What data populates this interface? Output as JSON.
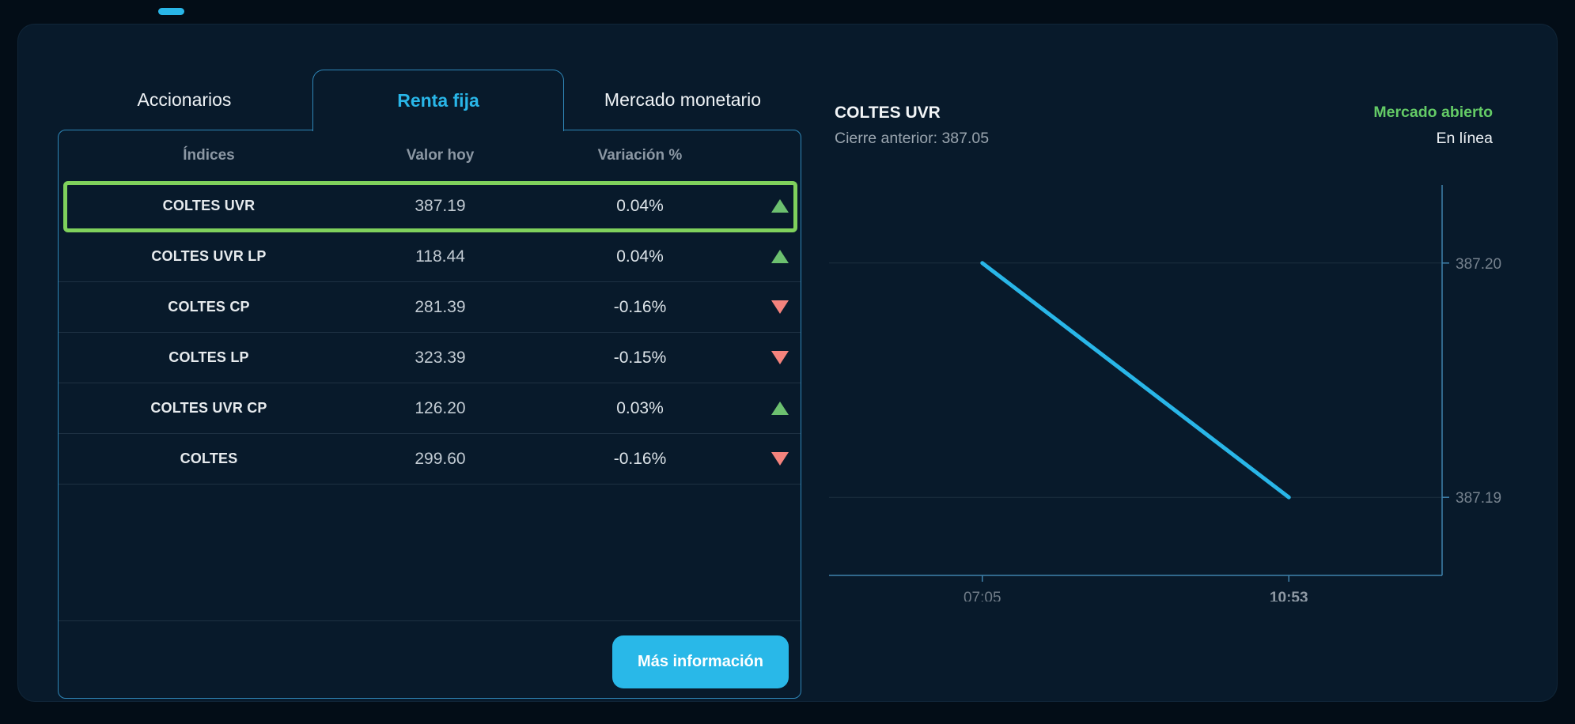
{
  "tabs": [
    {
      "label": "Accionarios",
      "active": false
    },
    {
      "label": "Renta fija",
      "active": true
    },
    {
      "label": "Mercado monetario",
      "active": false
    }
  ],
  "table": {
    "headers": [
      "Índices",
      "Valor hoy",
      "Variación %"
    ],
    "rows": [
      {
        "index": "COLTES UVR",
        "value": "387.19",
        "variation": "0.04%",
        "direction": "up",
        "selected": true
      },
      {
        "index": "COLTES UVR LP",
        "value": "118.44",
        "variation": "0.04%",
        "direction": "up",
        "selected": false
      },
      {
        "index": "COLTES CP",
        "value": "281.39",
        "variation": "-0.16%",
        "direction": "down",
        "selected": false
      },
      {
        "index": "COLTES LP",
        "value": "323.39",
        "variation": "-0.15%",
        "direction": "down",
        "selected": false
      },
      {
        "index": "COLTES UVR CP",
        "value": "126.20",
        "variation": "0.03%",
        "direction": "up",
        "selected": false
      },
      {
        "index": "COLTES",
        "value": "299.60",
        "variation": "-0.16%",
        "direction": "down",
        "selected": false
      }
    ],
    "more_info_label": "Más información"
  },
  "chart_header": {
    "title": "COLTES UVR",
    "previous_close": "Cierre anterior: 387.05",
    "market_status": "Mercado abierto",
    "connection_status": "En línea"
  },
  "chart_data": {
    "type": "line",
    "title": "COLTES UVR",
    "x_ticks": [
      "07:05",
      "10:53"
    ],
    "y_ticks": [
      387.2,
      387.19
    ],
    "ylim": [
      387.1867,
      387.2033
    ],
    "series": [
      {
        "name": "COLTES UVR",
        "x": [
          "07:05",
          "10:53"
        ],
        "values": [
          387.2,
          387.19
        ]
      }
    ],
    "grid": true,
    "legend": "none",
    "y_axis_position": "right",
    "line_color": "#29b6e8"
  },
  "colors": {
    "accent": "#29b6e8",
    "positive": "#6cc06f",
    "negative": "#f4837d",
    "selected_border": "#7fd15c",
    "market_open": "#64cb66",
    "axis": "#3f82ac",
    "axis_label": "#76828e",
    "grid_line": "rgba(170,190,210,0.13)"
  }
}
